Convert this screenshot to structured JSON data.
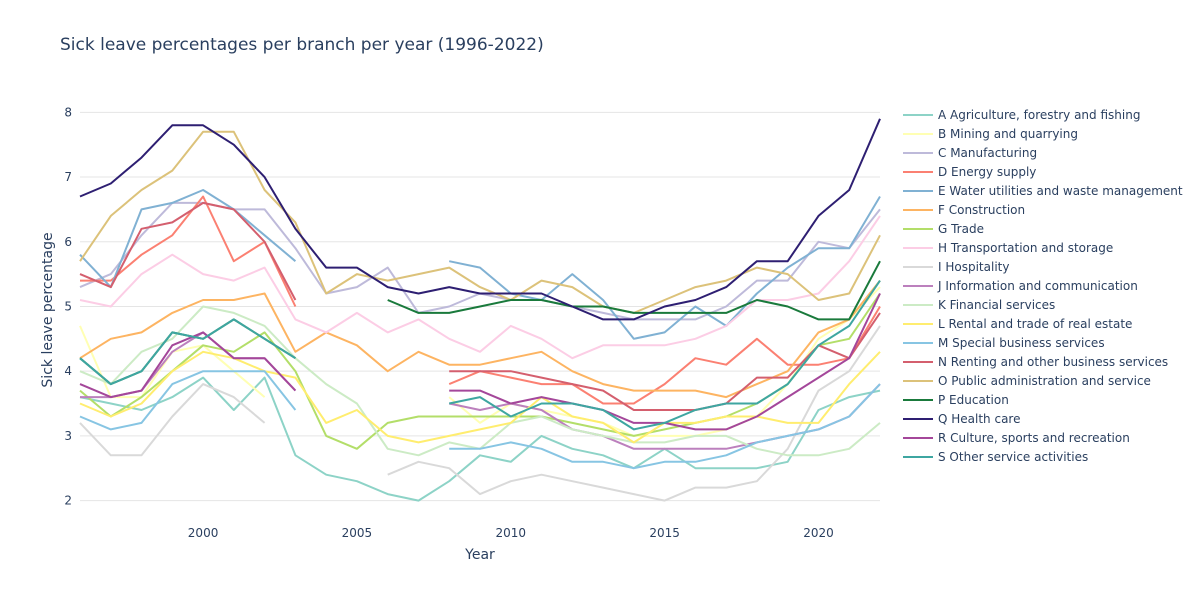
{
  "chart_data": {
    "type": "line",
    "title": "Sick leave percentages per branch per year (1996-2022)",
    "xlabel": "Year",
    "ylabel": "Sick leave percentage",
    "xlim": [
      1996,
      2022
    ],
    "ylim": [
      1.7,
      8.5
    ],
    "xticks": [
      2000,
      2005,
      2010,
      2015,
      2020
    ],
    "yticks": [
      2,
      3,
      4,
      5,
      6,
      7,
      8
    ],
    "grid": true,
    "legend": "right",
    "x": [
      1996,
      1997,
      1998,
      1999,
      2000,
      2001,
      2002,
      2003,
      2004,
      2005,
      2006,
      2007,
      2008,
      2009,
      2010,
      2011,
      2012,
      2013,
      2014,
      2015,
      2016,
      2017,
      2018,
      2019,
      2020,
      2021,
      2022
    ],
    "series": [
      {
        "name": "A Agriculture, forestry and fishing",
        "color": "#8dd3c7",
        "values": [
          3.6,
          3.5,
          3.4,
          3.6,
          3.9,
          3.4,
          3.9,
          2.7,
          2.4,
          2.3,
          2.1,
          2.0,
          2.3,
          2.7,
          2.6,
          3.0,
          2.8,
          2.7,
          2.5,
          2.8,
          2.5,
          2.5,
          2.5,
          2.6,
          3.4,
          3.6,
          3.7
        ]
      },
      {
        "name": "B Mining and quarrying",
        "color": "#ffffb3",
        "values": [
          4.7,
          3.6,
          3.6,
          4.3,
          4.4,
          4.0,
          3.6,
          null,
          null,
          null,
          null,
          null,
          3.6,
          3.2,
          3.5,
          3.4,
          3.3,
          3.2,
          3.0,
          3.0,
          3.0,
          3.1,
          3.3,
          3.8,
          4.5,
          4.8,
          5.3
        ]
      },
      {
        "name": "C Manufacturing",
        "color": "#bebada",
        "values": [
          5.3,
          5.5,
          6.1,
          6.6,
          6.6,
          6.5,
          6.5,
          5.9,
          5.2,
          5.3,
          5.6,
          4.9,
          5.0,
          5.2,
          5.1,
          5.1,
          5.0,
          4.9,
          4.8,
          4.8,
          4.8,
          5.0,
          5.4,
          5.4,
          6.0,
          5.9,
          6.5
        ]
      },
      {
        "name": "D Energy supply",
        "color": "#fb8072",
        "values": [
          5.4,
          5.4,
          5.8,
          6.1,
          6.7,
          5.7,
          6.0,
          5.0,
          null,
          null,
          null,
          null,
          3.8,
          4.0,
          3.9,
          3.8,
          3.8,
          3.5,
          3.5,
          3.8,
          4.2,
          4.1,
          4.5,
          4.1,
          4.1,
          4.2,
          5.0
        ]
      },
      {
        "name": "E Water utilities and waste management",
        "color": "#80b1d3",
        "values": [
          5.8,
          5.3,
          6.5,
          6.6,
          6.8,
          6.5,
          6.1,
          5.7,
          null,
          null,
          null,
          null,
          5.7,
          5.6,
          5.2,
          5.1,
          5.5,
          5.1,
          4.5,
          4.6,
          5.0,
          4.7,
          5.2,
          5.6,
          5.9,
          5.9,
          6.7
        ]
      },
      {
        "name": "F Construction",
        "color": "#fdb462",
        "values": [
          4.2,
          4.5,
          4.6,
          4.9,
          5.1,
          5.1,
          5.2,
          4.3,
          4.6,
          4.4,
          4.0,
          4.3,
          4.1,
          4.1,
          4.2,
          4.3,
          4.0,
          3.8,
          3.7,
          3.7,
          3.7,
          3.6,
          3.8,
          4.0,
          4.6,
          4.8,
          5.4
        ]
      },
      {
        "name": "G Trade",
        "color": "#b3de69",
        "values": [
          3.7,
          3.3,
          3.6,
          4.0,
          4.4,
          4.3,
          4.6,
          4.0,
          3.0,
          2.8,
          3.2,
          3.3,
          3.3,
          3.3,
          3.3,
          3.3,
          3.2,
          3.1,
          3.0,
          3.1,
          3.2,
          3.3,
          3.5,
          3.8,
          4.4,
          4.5,
          5.2
        ]
      },
      {
        "name": "H Transportation and storage",
        "color": "#fccde5",
        "values": [
          5.1,
          5.0,
          5.5,
          5.8,
          5.5,
          5.4,
          5.6,
          4.8,
          4.6,
          4.9,
          4.6,
          4.8,
          4.5,
          4.3,
          4.7,
          4.5,
          4.2,
          4.4,
          4.4,
          4.4,
          4.5,
          4.7,
          5.1,
          5.1,
          5.2,
          5.7,
          6.4
        ]
      },
      {
        "name": "I Hospitality",
        "color": "#d9d9d9",
        "values": [
          3.2,
          2.7,
          2.7,
          3.3,
          3.8,
          3.6,
          3.2,
          null,
          null,
          null,
          2.4,
          2.6,
          2.5,
          2.1,
          2.3,
          2.4,
          2.3,
          2.2,
          2.1,
          2.0,
          2.2,
          2.2,
          2.3,
          2.8,
          3.7,
          4.0,
          4.7
        ]
      },
      {
        "name": "J Information and communication",
        "color": "#bc80bd",
        "values": [
          3.6,
          3.6,
          3.7,
          4.3,
          4.6,
          4.2,
          4.2,
          3.7,
          null,
          null,
          null,
          null,
          3.5,
          3.4,
          3.5,
          3.4,
          3.1,
          3.0,
          2.8,
          2.8,
          2.8,
          2.8,
          2.9,
          3.0,
          3.1,
          3.3,
          3.8
        ]
      },
      {
        "name": "K Financial services",
        "color": "#ccebc5",
        "values": [
          4.0,
          3.8,
          4.3,
          4.5,
          5.0,
          4.9,
          4.7,
          4.2,
          3.8,
          3.5,
          2.8,
          2.7,
          2.9,
          2.8,
          3.2,
          3.3,
          3.1,
          3.0,
          2.9,
          2.9,
          3.0,
          3.0,
          2.8,
          2.7,
          2.7,
          2.8,
          3.2
        ]
      },
      {
        "name": "L Rental and trade of real estate",
        "color": "#ffed6f",
        "values": [
          3.5,
          3.3,
          3.5,
          4.0,
          4.3,
          4.2,
          4.0,
          3.9,
          3.2,
          3.4,
          3.0,
          2.9,
          3.0,
          3.1,
          3.2,
          3.6,
          3.3,
          3.2,
          2.9,
          3.2,
          3.2,
          3.3,
          3.3,
          3.2,
          3.2,
          3.8,
          4.3
        ]
      },
      {
        "name": "M Special business services",
        "color": "#87c5e3",
        "values": [
          3.3,
          3.1,
          3.2,
          3.8,
          4.0,
          4.0,
          4.0,
          3.4,
          null,
          null,
          null,
          null,
          2.8,
          2.8,
          2.9,
          2.8,
          2.6,
          2.6,
          2.5,
          2.6,
          2.6,
          2.7,
          2.9,
          3.0,
          3.1,
          3.3,
          3.8
        ]
      },
      {
        "name": "N Renting and other business services",
        "color": "#d45f6e",
        "values": [
          5.5,
          5.3,
          6.2,
          6.3,
          6.6,
          6.5,
          6.0,
          5.1,
          null,
          null,
          null,
          null,
          4.0,
          4.0,
          4.0,
          3.9,
          3.8,
          3.7,
          3.4,
          3.4,
          3.4,
          3.5,
          3.9,
          3.9,
          4.4,
          4.2,
          4.9
        ]
      },
      {
        "name": "O Public administration and service",
        "color": "#dcc27a",
        "values": [
          5.7,
          6.4,
          6.8,
          7.1,
          7.7,
          7.7,
          6.8,
          6.3,
          5.2,
          5.5,
          5.4,
          5.5,
          5.6,
          5.3,
          5.1,
          5.4,
          5.3,
          5.0,
          4.9,
          5.1,
          5.3,
          5.4,
          5.6,
          5.5,
          5.1,
          5.2,
          6.1
        ]
      },
      {
        "name": "P Education",
        "color": "#1a7a3c",
        "values": [
          4.2,
          3.8,
          4.0,
          4.6,
          4.5,
          4.8,
          4.5,
          4.2,
          null,
          null,
          5.1,
          4.9,
          4.9,
          5.0,
          5.1,
          5.1,
          5.0,
          5.0,
          4.9,
          4.9,
          4.9,
          4.9,
          5.1,
          5.0,
          4.8,
          4.8,
          5.7
        ]
      },
      {
        "name": "Q Health care",
        "color": "#2e1f72",
        "values": [
          6.7,
          6.9,
          7.3,
          7.8,
          7.8,
          7.5,
          7.0,
          6.2,
          5.6,
          5.6,
          5.3,
          5.2,
          5.3,
          5.2,
          5.2,
          5.2,
          5.0,
          4.8,
          4.8,
          5.0,
          5.1,
          5.3,
          5.7,
          5.7,
          6.4,
          6.8,
          7.9
        ]
      },
      {
        "name": "R Culture, sports and recreation",
        "color": "#a4479a",
        "values": [
          3.8,
          3.6,
          3.7,
          4.4,
          4.6,
          4.2,
          4.2,
          3.7,
          null,
          null,
          null,
          null,
          3.7,
          3.7,
          3.5,
          3.6,
          3.5,
          3.4,
          3.2,
          3.2,
          3.1,
          3.1,
          3.3,
          3.6,
          3.9,
          4.2,
          5.2
        ]
      },
      {
        "name": "S Other service activities",
        "color": "#3ea6a1",
        "values": [
          4.2,
          3.8,
          4.0,
          4.6,
          4.5,
          4.8,
          4.5,
          4.2,
          null,
          null,
          null,
          null,
          3.5,
          3.6,
          3.3,
          3.5,
          3.5,
          3.4,
          3.1,
          3.2,
          3.4,
          3.5,
          3.5,
          3.8,
          4.4,
          4.7,
          5.4
        ]
      }
    ]
  }
}
